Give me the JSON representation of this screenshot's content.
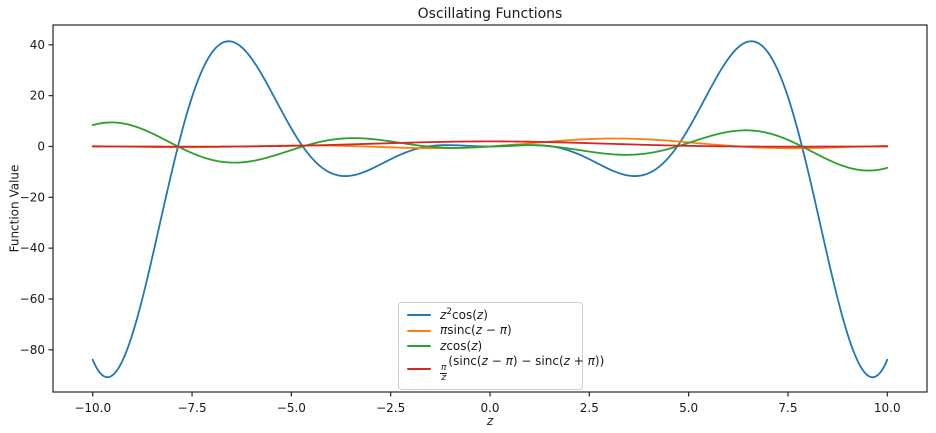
{
  "chart_data": {
    "type": "line",
    "title": "Oscillating Functions",
    "xlabel": "z",
    "ylabel": "Function Value",
    "xlim": [
      -11,
      11
    ],
    "ylim": [
      -96.6,
      47.8
    ],
    "grid": false,
    "legend_position": "lower center",
    "x_ticks": {
      "values": [
        -10,
        -7.5,
        -5,
        -2.5,
        0,
        2.5,
        5,
        7.5,
        10
      ],
      "labels": [
        "−10.0",
        "−7.5",
        "−5.0",
        "−2.5",
        "0.0",
        "2.5",
        "5.0",
        "7.5",
        "10.0"
      ]
    },
    "y_ticks": {
      "values": [
        40,
        20,
        0,
        -20,
        -40,
        -60,
        -80
      ],
      "labels": [
        "40",
        "20",
        "0",
        "−20",
        "−40",
        "−60",
        "−80"
      ]
    },
    "axis_color": "#262626",
    "sample_x": [
      -10,
      -9.5,
      -9,
      -8.5,
      -8,
      -7.5,
      -7,
      -6.5,
      -6,
      -5.5,
      -5,
      -4.5,
      -4,
      -3.5,
      -3,
      -2.5,
      -2,
      -1.5,
      -1,
      -0.5,
      0,
      0.5,
      1,
      1.5,
      2,
      2.5,
      3,
      3.5,
      4,
      4.5,
      5,
      5.5,
      6,
      6.5,
      7,
      7.5,
      8,
      8.5,
      9,
      9.5,
      10
    ],
    "series": [
      {
        "name": "z^2 cos(z)",
        "color": "#1f77b4",
        "formula_js": "x*x*Math.cos(x)",
        "sample_y": [
          -83.91,
          -90.0,
          -73.8,
          -43.49,
          -9.31,
          19.5,
          36.94,
          41.26,
          34.57,
          21.44,
          7.09,
          -4.27,
          -10.46,
          -11.47,
          -8.91,
          -5.01,
          -1.66,
          0.16,
          0.54,
          0.22,
          0.0,
          0.22,
          0.54,
          0.16,
          -1.66,
          -5.01,
          -8.91,
          -11.47,
          -10.46,
          -4.27,
          7.09,
          21.44,
          34.57,
          41.26,
          36.94,
          19.5,
          -9.31,
          -43.49,
          -73.8,
          -90.0,
          -83.91
        ]
      },
      {
        "name": "π sinc(z − π)",
        "color": "#ff7f0e",
        "formula_js": "Math.PI*Math.sin(x-Math.PI)/(x-Math.PI)",
        "sample_y": [
          0.13,
          0.02,
          -0.11,
          -0.22,
          -0.28,
          -0.28,
          -0.2,
          -0.07,
          0.1,
          0.26,
          0.37,
          0.4,
          0.33,
          0.17,
          -0.07,
          -0.33,
          -0.56,
          -0.68,
          -0.64,
          -0.41,
          0.0,
          0.57,
          1.23,
          1.91,
          2.5,
          2.93,
          3.13,
          3.08,
          2.77,
          2.26,
          1.62,
          0.94,
          0.31,
          -0.2,
          -0.53,
          -0.68,
          -0.64,
          -0.47,
          -0.22,
          0.04,
          0.25
        ]
      },
      {
        "name": "z cos(z)",
        "color": "#2ca02c",
        "formula_js": "x*Math.cos(x)",
        "sample_y": [
          8.39,
          9.47,
          8.2,
          5.12,
          1.16,
          -2.6,
          -5.28,
          -6.35,
          -5.76,
          -3.9,
          -1.42,
          0.95,
          2.61,
          3.28,
          2.97,
          2.0,
          0.83,
          -0.11,
          -0.54,
          -0.44,
          0.0,
          0.44,
          0.54,
          0.11,
          -0.83,
          -2.0,
          -2.97,
          -3.28,
          -2.61,
          -0.95,
          1.42,
          3.9,
          5.76,
          6.35,
          5.28,
          2.6,
          -1.16,
          -5.12,
          -8.2,
          -9.47,
          -8.39
        ]
      },
      {
        "name": "(π/z)(sinc(z − π) − sinc(z + π))",
        "color": "#d62728",
        "formula_js": "-2*Math.PI*Math.PI*Math.sin(x)/(x*(x*x-Math.PI*Math.PI))",
        "sample_y": [
          0.01,
          0.0,
          -0.01,
          -0.03,
          -0.05,
          -0.05,
          -0.05,
          -0.02,
          0.04,
          0.12,
          0.25,
          0.41,
          0.61,
          0.83,
          1.07,
          1.31,
          1.53,
          1.72,
          1.87,
          1.97,
          2.0,
          1.97,
          1.87,
          1.72,
          1.53,
          1.31,
          1.07,
          0.83,
          0.61,
          0.41,
          0.25,
          0.12,
          0.04,
          -0.02,
          -0.05,
          -0.05,
          -0.05,
          -0.03,
          -0.01,
          0.0,
          0.01
        ]
      }
    ],
    "legend_entries": [
      {
        "plain": "z²cos(z)",
        "color": "#1f77b4",
        "segments": [
          [
            "it",
            "z"
          ],
          [
            "sup",
            "2"
          ],
          [
            "rm",
            "cos("
          ],
          [
            "it",
            "z"
          ],
          [
            "rm",
            ")"
          ]
        ]
      },
      {
        "plain": "πsinc(z − π)",
        "color": "#ff7f0e",
        "segments": [
          [
            "it",
            "π"
          ],
          [
            "rm",
            "sinc("
          ],
          [
            "it",
            "z"
          ],
          [
            "rm",
            " − "
          ],
          [
            "it",
            "π"
          ],
          [
            "rm",
            ")"
          ]
        ]
      },
      {
        "plain": "zcos(z)",
        "color": "#2ca02c",
        "segments": [
          [
            "it",
            "z"
          ],
          [
            "rm",
            "cos("
          ],
          [
            "it",
            "z"
          ],
          [
            "rm",
            ")"
          ]
        ]
      },
      {
        "plain": "π⁄z(sinc(z − π) − sinc(z + π))",
        "color": "#d62728",
        "segments": [
          [
            "frac",
            "π",
            "z"
          ],
          [
            "rm",
            "(sinc("
          ],
          [
            "it",
            "z"
          ],
          [
            "rm",
            " − "
          ],
          [
            "it",
            "π"
          ],
          [
            "rm",
            ") − sinc("
          ],
          [
            "it",
            "z"
          ],
          [
            "rm",
            " + "
          ],
          [
            "it",
            "π"
          ],
          [
            "rm",
            "))"
          ]
        ]
      }
    ]
  }
}
